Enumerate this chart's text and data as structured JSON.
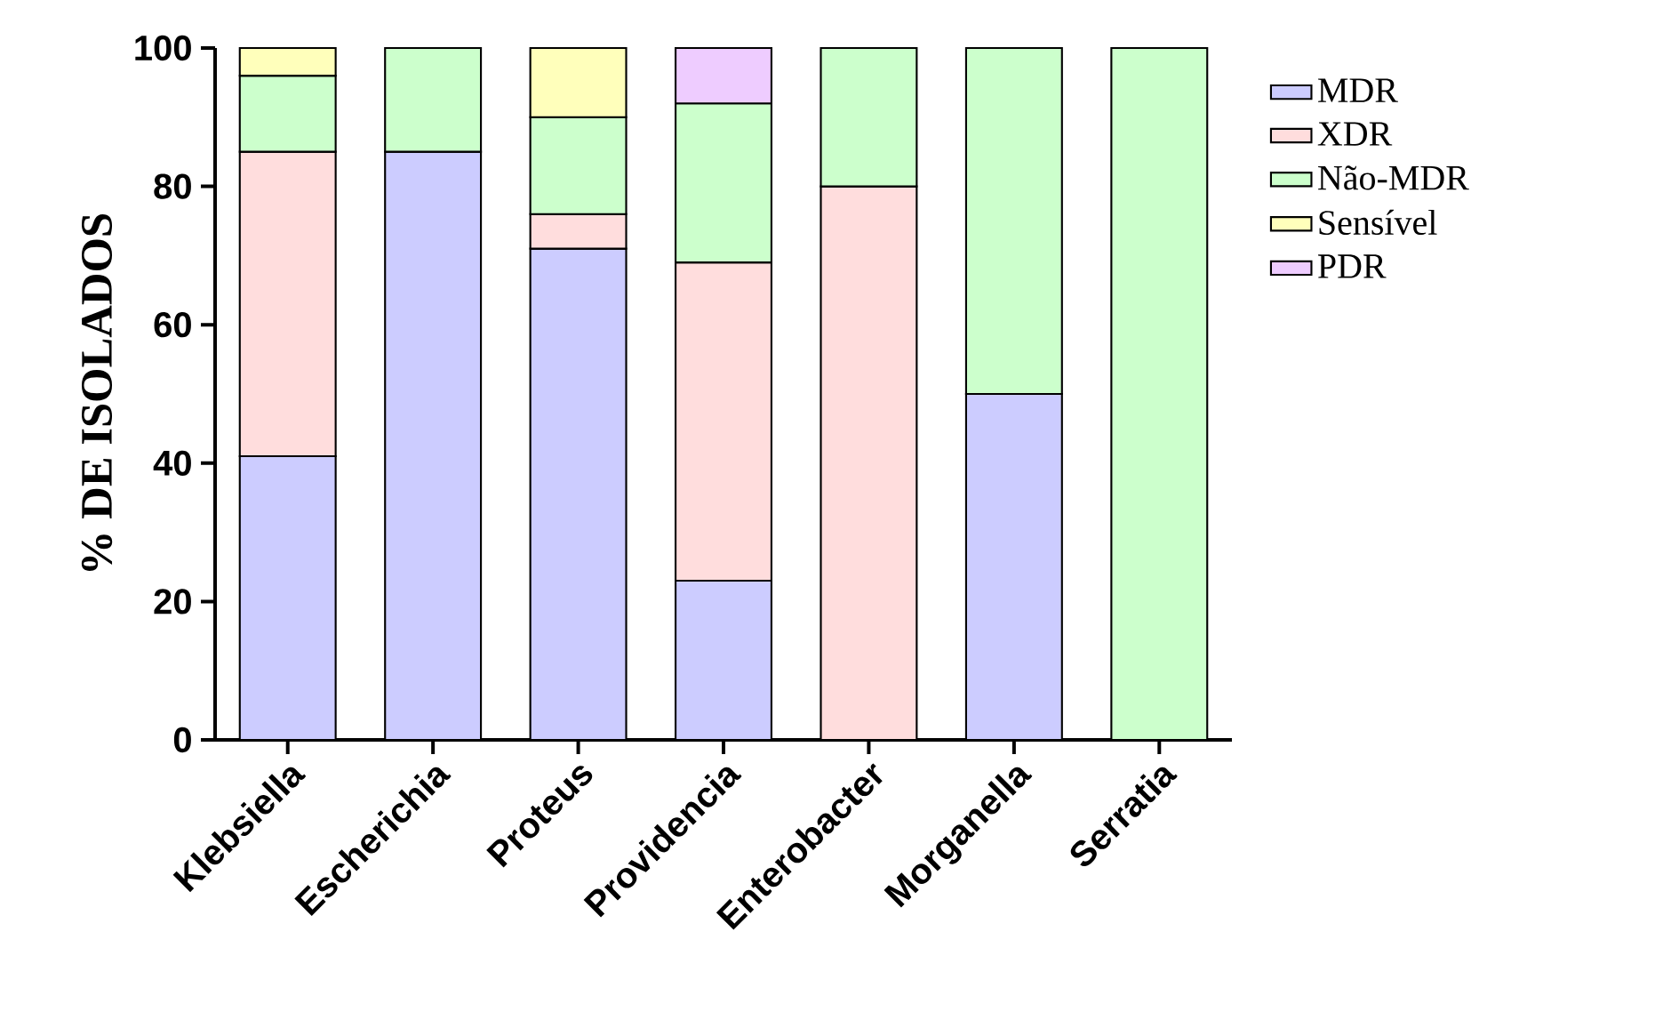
{
  "chart_data": {
    "type": "bar",
    "stacked": true,
    "ylabel": "% DE ISOLADOS",
    "categories": [
      "Klebsiella",
      "Escherichia",
      "Proteus",
      "Providencia",
      "Enterobacter",
      "Morganella",
      "Serratia"
    ],
    "series": [
      {
        "name": "MDR",
        "color": "#ccccff",
        "values": [
          41,
          85,
          71,
          23,
          null,
          50,
          null
        ]
      },
      {
        "name": "XDR",
        "color": "#ffdddd",
        "values": [
          44,
          null,
          5,
          46,
          80,
          null,
          null
        ]
      },
      {
        "name": "Não-MDR",
        "color": "#ccffcc",
        "values": [
          11,
          15,
          14,
          23,
          20,
          50,
          100
        ]
      },
      {
        "name": "Sensível",
        "color": "#ffffbb",
        "values": [
          4,
          null,
          10,
          null,
          null,
          null,
          null
        ]
      },
      {
        "name": "PDR",
        "color": "#eeccff",
        "values": [
          null,
          null,
          null,
          8,
          null,
          null,
          null
        ]
      }
    ],
    "ylim": [
      0,
      100
    ],
    "yticks": [
      0,
      20,
      40,
      60,
      80,
      100
    ],
    "grid": false,
    "legend": "right"
  }
}
